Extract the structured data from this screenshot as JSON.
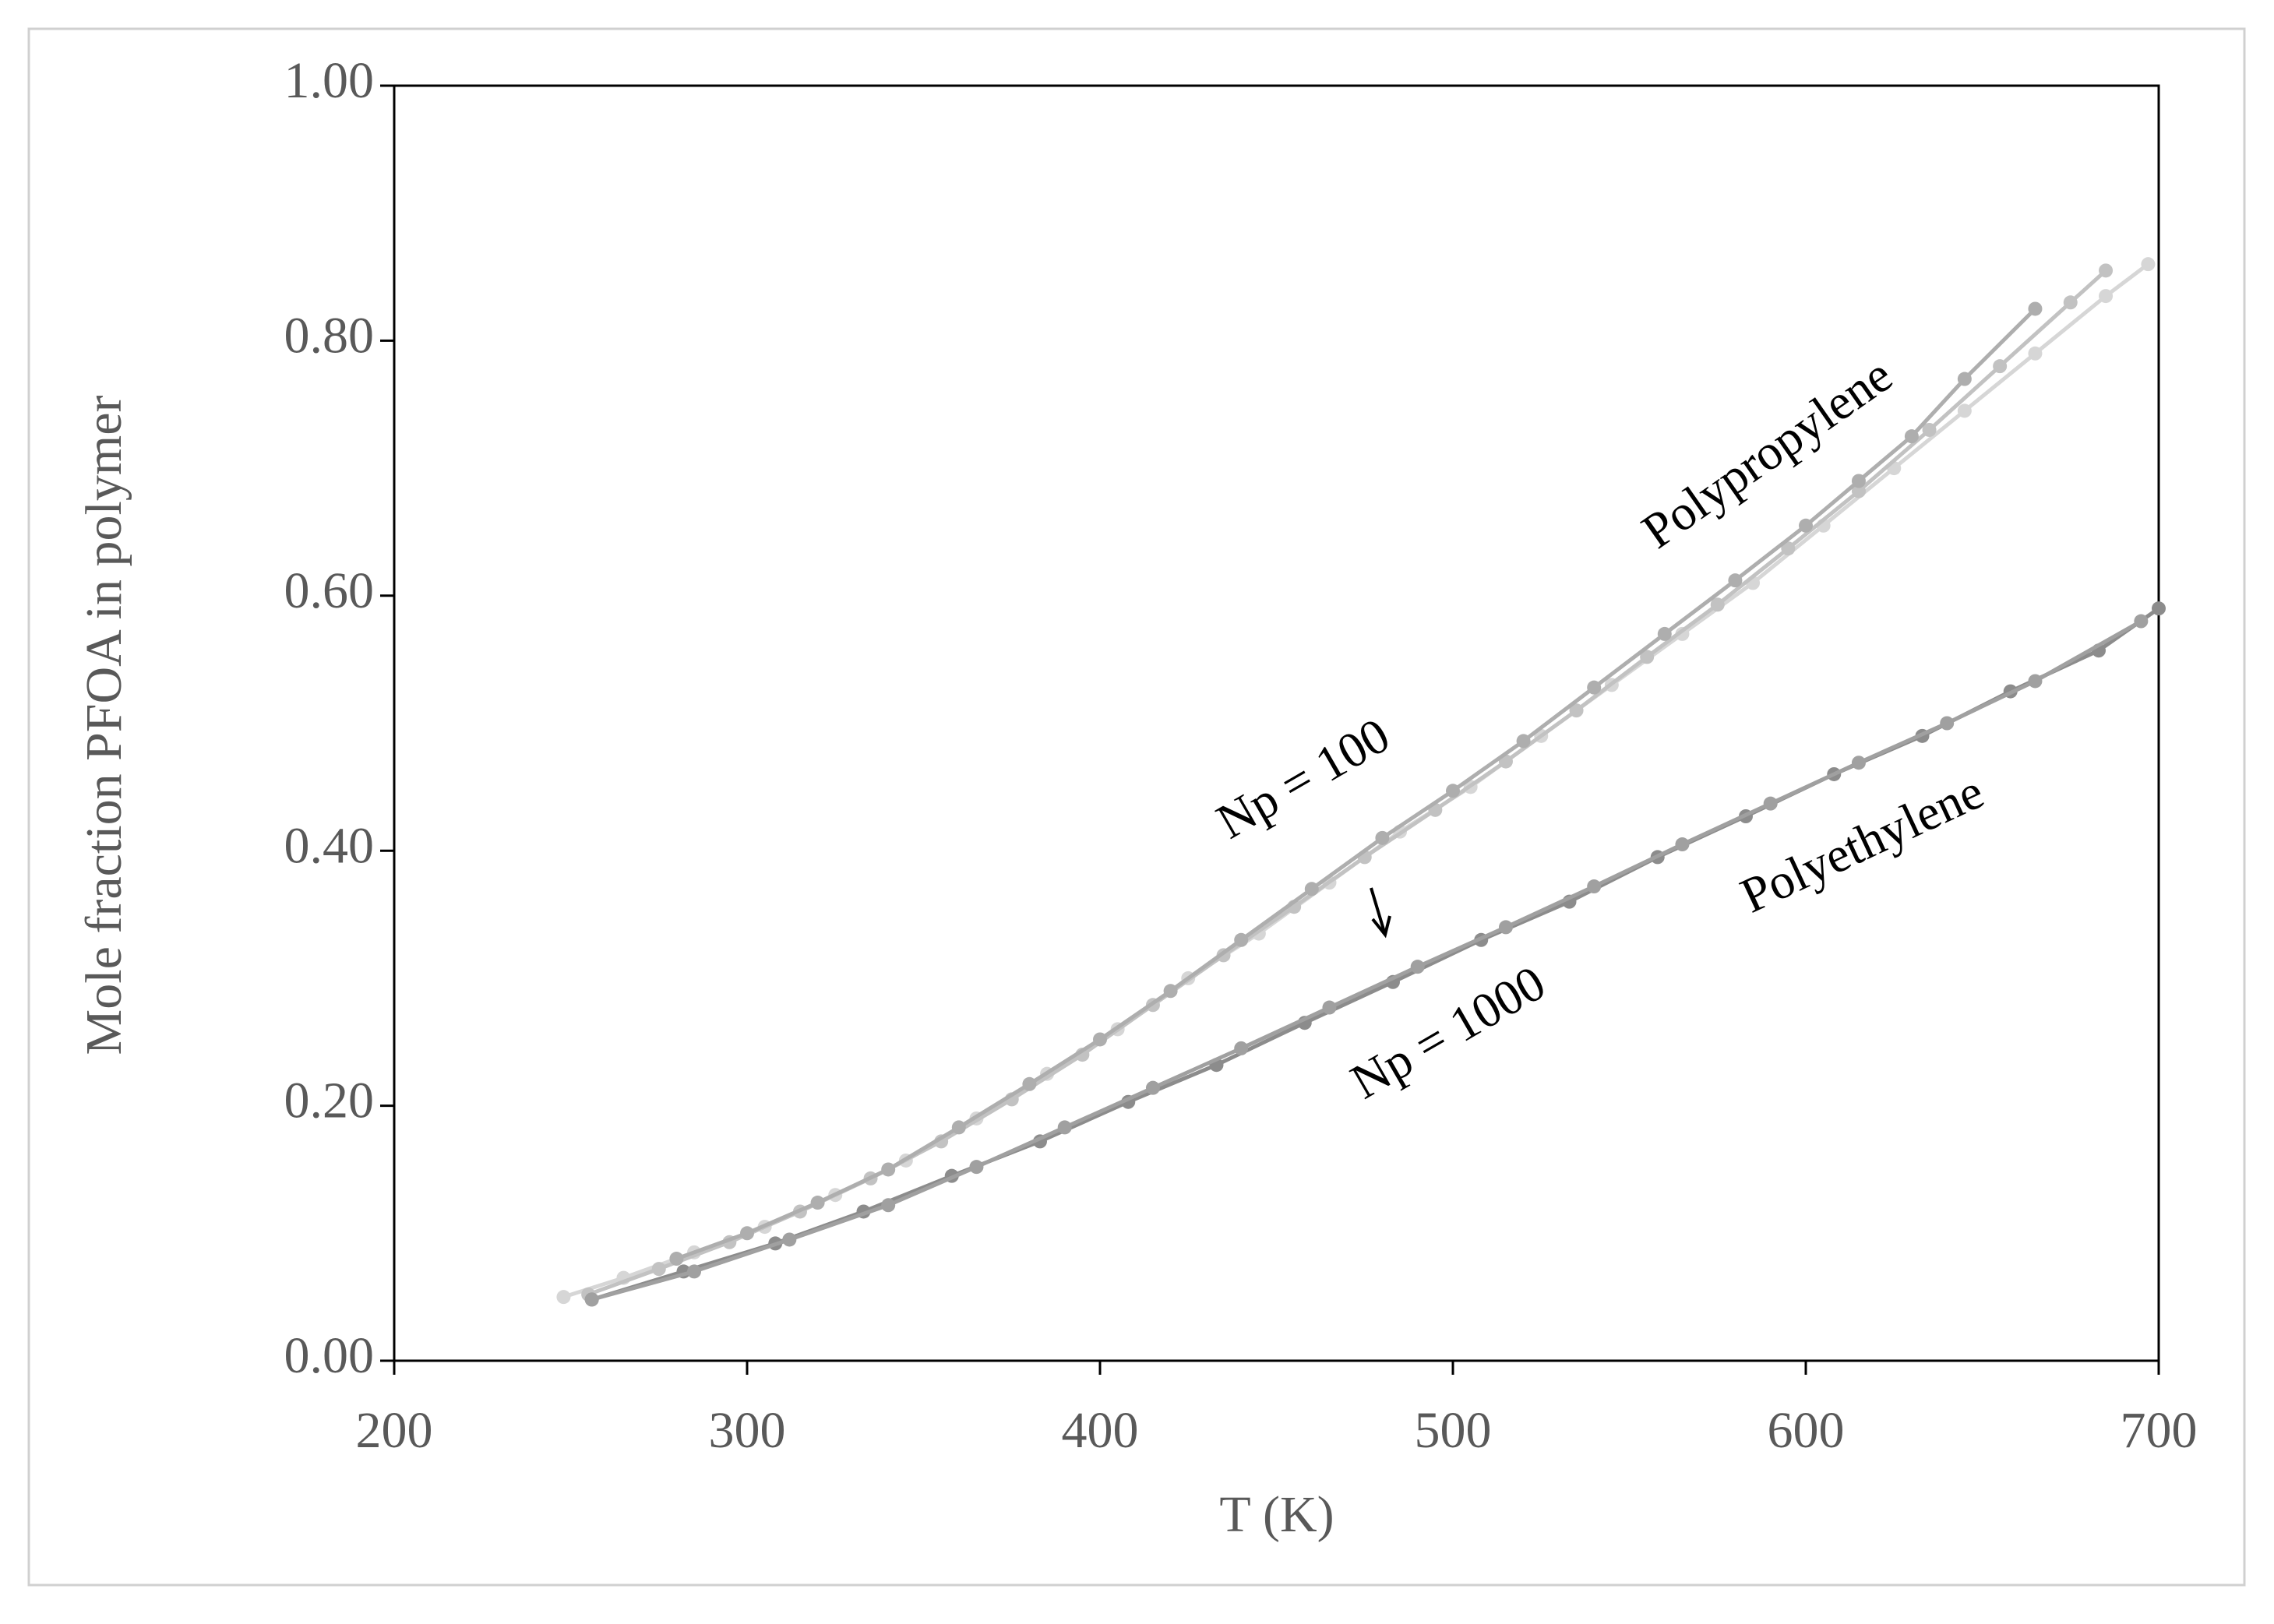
{
  "chart_data": {
    "type": "line",
    "x_label": "T (K)",
    "y_label": "Mole fraction PFOA in polymer",
    "xlim": [
      200,
      700
    ],
    "ylim": [
      0,
      1
    ],
    "xticks": [
      200,
      300,
      400,
      500,
      600,
      700
    ],
    "yticks": [
      {
        "value": 0,
        "label": "0.00"
      },
      {
        "value": 0.2,
        "label": "0.20"
      },
      {
        "value": 0.4,
        "label": "0.40"
      },
      {
        "value": 0.6,
        "label": "0.60"
      },
      {
        "value": 0.8,
        "label": "0.80"
      },
      {
        "value": 1,
        "label": "1.00"
      }
    ],
    "annotations": [
      "Polypropylene",
      "Np = 100",
      "Np = 1000",
      "Polyethylene"
    ],
    "series": [
      {
        "color": "#d6d6d6",
        "x": [
          248,
          265,
          285,
          305,
          325,
          345,
          365,
          385,
          405,
          425,
          445,
          465,
          485,
          505,
          525,
          545,
          565,
          585,
          605,
          625,
          645,
          665,
          685,
          697
        ],
        "values": [
          0.05,
          0.065,
          0.085,
          0.105,
          0.13,
          0.157,
          0.19,
          0.225,
          0.26,
          0.3,
          0.335,
          0.375,
          0.415,
          0.45,
          0.49,
          0.53,
          0.57,
          0.61,
          0.655,
          0.7,
          0.745,
          0.79,
          0.835,
          0.86
        ]
      },
      {
        "color": "#c2c2c2",
        "x": [
          255,
          275,
          295,
          315,
          335,
          355,
          375,
          395,
          415,
          435,
          455,
          475,
          495,
          515,
          535,
          555,
          575,
          595,
          615,
          635,
          655,
          675,
          685
        ],
        "values": [
          0.052,
          0.072,
          0.093,
          0.117,
          0.143,
          0.172,
          0.205,
          0.24,
          0.279,
          0.318,
          0.356,
          0.395,
          0.432,
          0.47,
          0.51,
          0.552,
          0.593,
          0.637,
          0.682,
          0.73,
          0.78,
          0.83,
          0.855
        ]
      },
      {
        "color": "#aeaeae",
        "x": [
          280,
          300,
          320,
          340,
          360,
          380,
          400,
          420,
          440,
          460,
          480,
          500,
          520,
          540,
          560,
          580,
          600,
          615,
          630,
          645,
          665
        ],
        "values": [
          0.08,
          0.1,
          0.124,
          0.15,
          0.183,
          0.217,
          0.252,
          0.29,
          0.33,
          0.37,
          0.41,
          0.447,
          0.486,
          0.528,
          0.57,
          0.612,
          0.655,
          0.69,
          0.725,
          0.77,
          0.825
        ]
      },
      {
        "color": "#8c8c8c",
        "x": [
          256,
          282,
          308,
          333,
          358,
          383,
          408,
          433,
          458,
          483,
          508,
          533,
          558,
          583,
          608,
          633,
          658,
          683,
          700
        ],
        "values": [
          0.048,
          0.07,
          0.092,
          0.117,
          0.145,
          0.172,
          0.203,
          0.232,
          0.265,
          0.297,
          0.33,
          0.36,
          0.395,
          0.427,
          0.46,
          0.49,
          0.525,
          0.557,
          0.59
        ]
      },
      {
        "color": "#a0a0a0",
        "x": [
          256,
          285,
          312,
          340,
          365,
          390,
          415,
          440,
          465,
          490,
          515,
          540,
          565,
          590,
          615,
          640,
          665,
          695
        ],
        "values": [
          0.048,
          0.07,
          0.095,
          0.122,
          0.152,
          0.183,
          0.214,
          0.245,
          0.277,
          0.309,
          0.34,
          0.372,
          0.405,
          0.437,
          0.469,
          0.5,
          0.533,
          0.58
        ]
      }
    ]
  }
}
